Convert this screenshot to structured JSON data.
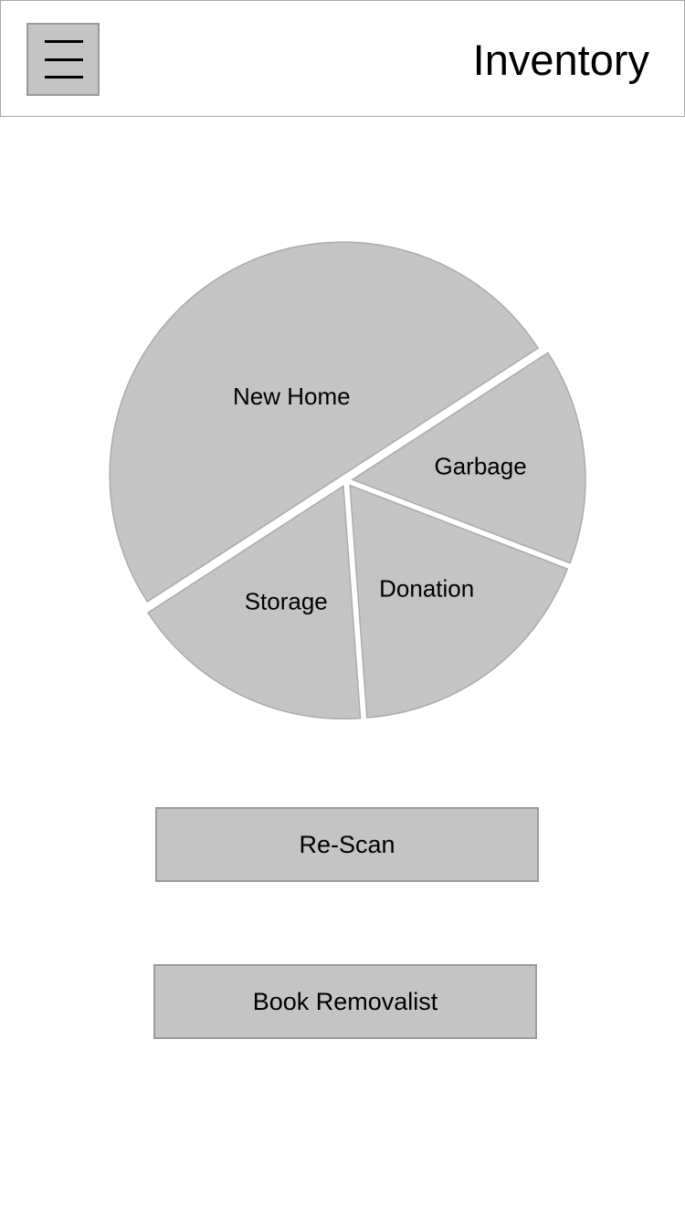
{
  "header": {
    "title": "Inventory",
    "menu_icon": "hamburger-menu-icon"
  },
  "chart_data": {
    "type": "pie",
    "title": "",
    "slices": [
      {
        "label": "New Home",
        "value": 50
      },
      {
        "label": "Garbage",
        "value": 15
      },
      {
        "label": "Donation",
        "value": 18
      },
      {
        "label": "Storage",
        "value": 17
      }
    ]
  },
  "actions": {
    "rescan_label": "Re-Scan",
    "book_label": "Book Removalist"
  },
  "colors": {
    "slice_fill": "#c4c4c4",
    "slice_stroke": "#ababab",
    "button_fill": "#c4c4c4",
    "button_border": "#9b9b9b"
  }
}
